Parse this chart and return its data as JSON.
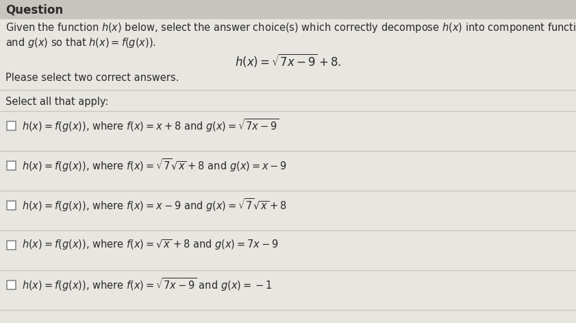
{
  "bg_color": "#d6d3cc",
  "content_bg": "#e8e6e0",
  "title_text": "Question",
  "question_line1": "Given the function $h(x)$ below, select the answer choice(s) which correctly decompose $h(x)$ into component functions $f(x)$",
  "question_line2": "and $g(x)$ so that $h(x) = f(g(x))$.",
  "formula": "$h(x) = \\sqrt{7x-9}+8.$",
  "please_text": "Please select two correct answers.",
  "select_text": "Select all that apply:",
  "options": [
    "$h(x) = f(g(x))$, where $f(x) = x+8$ and $g(x) = \\sqrt{7x-9}$",
    "$h(x) = f(g(x))$, where $f(x) = \\sqrt{7}\\sqrt{x}+8$ and $g(x) = x-9$",
    "$h(x) = f(g(x))$, where $f(x) = x-9$ and $g(x) = \\sqrt{7}\\sqrt{x}+8$",
    "$h(x) = f(g(x))$, where $f(x) = \\sqrt{x}+8$ and $g(x) = 7x-9$",
    "$h(x) = f(g(x))$, where $f(x) = \\sqrt{7x-9}$ and $g(x) = -1$"
  ],
  "font_size_question": 10.5,
  "font_size_formula": 12,
  "font_size_options": 10.5,
  "font_size_title": 12,
  "separator_color": "#c8c5be",
  "text_color": "#2a2a2a",
  "checkbox_edge_color": "#888888"
}
